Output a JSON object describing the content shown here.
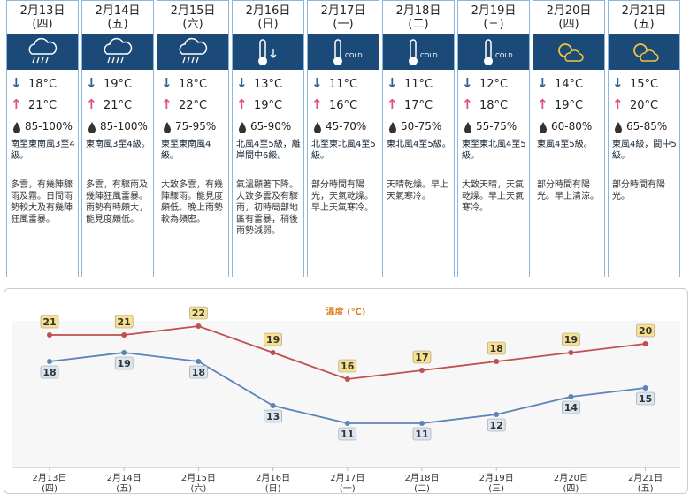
{
  "forecast": {
    "days": [
      {
        "date": "2月13日",
        "weekday": "(四)",
        "min_temp": "18°C",
        "max_temp": "21°C",
        "humidity": "85-100%",
        "wind": "南至東南風3至4級。",
        "weather": "多雲，有幾陣驟雨及霧。日間雨勢較大及有幾陣狂風雷暴。"
      },
      {
        "date": "2月14日",
        "weekday": "(五)",
        "min_temp": "19°C",
        "max_temp": "21°C",
        "humidity": "85-100%",
        "wind": "東南風3至4級。",
        "weather": "多雲，有驟雨及幾陣狂風雷暴。雨勢有時頗大，能見度頗低。"
      },
      {
        "date": "2月15日",
        "weekday": "(六)",
        "min_temp": "18°C",
        "max_temp": "22°C",
        "humidity": "75-95%",
        "wind": "東至東南風4級。",
        "weather": "大致多雲，有幾陣驟雨。能見度頗低。晚上雨勢較為頻密。"
      },
      {
        "date": "2月16日",
        "weekday": "(日)",
        "min_temp": "13°C",
        "max_temp": "19°C",
        "humidity": "65-90%",
        "wind": "北風4至5級，離岸間中6級。",
        "weather": "氣溫顯著下降。大致多雲及有驟雨，初時局部地區有雷暴，稍後雨勢減弱。"
      },
      {
        "date": "2月17日",
        "weekday": "(一)",
        "min_temp": "11°C",
        "max_temp": "16°C",
        "humidity": "45-70%",
        "wind": "北至東北風4至5級。",
        "weather": "部分時間有陽光，天氣乾燥。早上天氣寒冷。",
        "icon_label": "COLD"
      },
      {
        "date": "2月18日",
        "weekday": "(二)",
        "min_temp": "11°C",
        "max_temp": "17°C",
        "humidity": "50-75%",
        "wind": "東北風4至5級。",
        "weather": "天晴乾燥。早上天氣寒冷。",
        "icon_label": "COLD"
      },
      {
        "date": "2月19日",
        "weekday": "(三)",
        "min_temp": "12°C",
        "max_temp": "18°C",
        "humidity": "55-75%",
        "wind": "東至東北風4至5級。",
        "weather": "大致天晴，天氣乾燥。早上天氣寒冷。",
        "icon_label": "COLD"
      },
      {
        "date": "2月20日",
        "weekday": "(四)",
        "min_temp": "14°C",
        "max_temp": "19°C",
        "humidity": "60-80%",
        "wind": "東風4至5級。",
        "weather": "部分時間有陽光。早上清涼。"
      },
      {
        "date": "2月21日",
        "weekday": "(五)",
        "min_temp": "15°C",
        "max_temp": "20°C",
        "humidity": "65-85%",
        "wind": "東風4級，間中5級。",
        "weather": "部分時間有陽光。"
      }
    ]
  },
  "chart_data": {
    "type": "line",
    "title": "溫度 (℃)",
    "categories": [
      "2月13日",
      "2月14日",
      "2月15日",
      "2月16日",
      "2月17日",
      "2月18日",
      "2月19日",
      "2月20日",
      "2月21日"
    ],
    "weekdays": [
      "(四)",
      "(五)",
      "(六)",
      "(日)",
      "(一)",
      "(二)",
      "(三)",
      "(四)",
      "(五)"
    ],
    "series": [
      {
        "color": "#c0504d",
        "label_fill": "#f7e08e",
        "values": [
          21,
          21,
          22,
          19,
          16,
          17,
          18,
          19,
          20
        ]
      },
      {
        "color": "#5b85b8",
        "label_fill": "#dbe6f3",
        "values": [
          18,
          19,
          18,
          13,
          11,
          11,
          12,
          14,
          15
        ]
      }
    ],
    "ylim": [
      6,
      24
    ]
  }
}
